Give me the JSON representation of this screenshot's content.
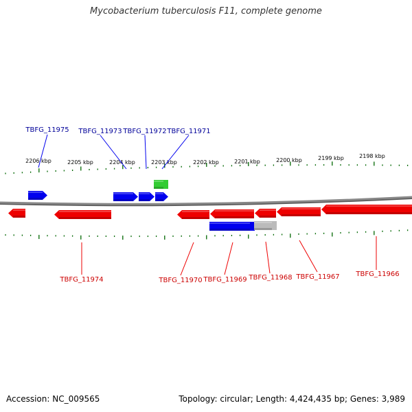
{
  "title": "Mycobacterium tuberculosis F11, complete genome",
  "footer": {
    "accession": "Accession: NC_009565",
    "summary": "Topology: circular; Length: 4,424,435 bp; Genes: 3,989"
  },
  "colors": {
    "forward_gene": "#0000ee",
    "reverse_gene": "#ee0000",
    "rna_gene": "#33cc33",
    "pseudo_gene": "#bbbbbb",
    "tick": "#006600",
    "backbone": "#888888",
    "forward_label": "#000099",
    "reverse_label": "#cc0000"
  },
  "scale_labels": [
    "2206 kbp",
    "2205 kbp",
    "2204 kbp",
    "2203 kbp",
    "2202 kbp",
    "2201 kbp",
    "2200 kbp",
    "2199 kbp",
    "2198 kbp"
  ],
  "gene_labels": [
    {
      "text": "TBFG_11975",
      "strand": "forward"
    },
    {
      "text": "TBFG_11973",
      "strand": "forward"
    },
    {
      "text": "TBFG_11972",
      "strand": "forward"
    },
    {
      "text": "TBFG_11971",
      "strand": "forward"
    },
    {
      "text": "TBFG_11974",
      "strand": "reverse"
    },
    {
      "text": "TBFG_11970",
      "strand": "reverse"
    },
    {
      "text": "TBFG_11969",
      "strand": "reverse"
    },
    {
      "text": "TBFG_11968",
      "strand": "reverse"
    },
    {
      "text": "TBFG_11967",
      "strand": "reverse"
    },
    {
      "text": "TBFG_11966",
      "strand": "reverse"
    }
  ]
}
